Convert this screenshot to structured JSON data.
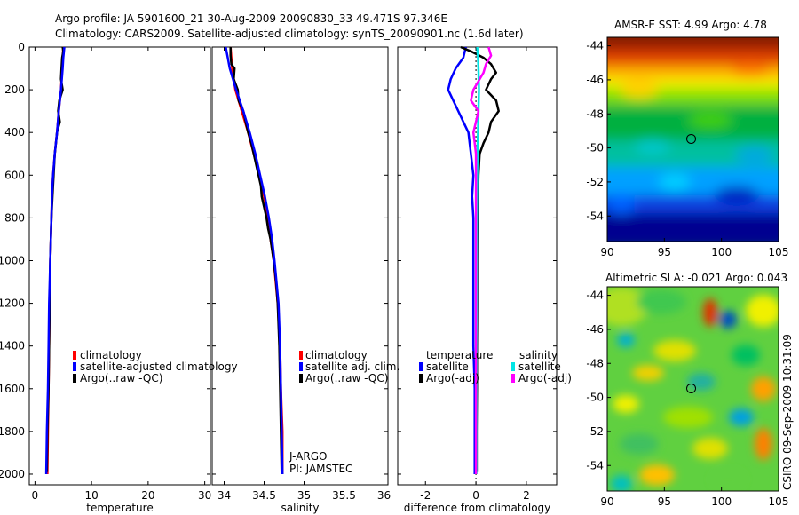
{
  "header": {
    "title_line1": "Argo profile: JA 5901600_21 30-Aug-2009 20090830_33 49.471S 97.346E",
    "title_line2": "Climatology: CARS2009. Satellite-adjusted climatology: synTS_20090901.nc (1.6d later)"
  },
  "stamp": "CSIRO 09-Sep-2009 10:31:09",
  "colors": {
    "climatology": "#ff0000",
    "satellite": "#0000ff",
    "argo": "#000000",
    "cyan": "#00e5e5",
    "magenta": "#ff00ff"
  },
  "chart_data": [
    {
      "type": "line",
      "name": "temperature",
      "xlabel": "temperature",
      "xlim": [
        -1,
        31
      ],
      "ylim": [
        0,
        2050
      ],
      "xticks": [
        "0",
        "10",
        "20",
        "30"
      ],
      "xtick_values": [
        0,
        10,
        20,
        30
      ],
      "yticks": [
        "0",
        "200",
        "400",
        "600",
        "800",
        "1000",
        "1200",
        "1400",
        "1600",
        "1800",
        "2000"
      ],
      "ytick_values": [
        0,
        200,
        400,
        600,
        800,
        1000,
        1200,
        1400,
        1600,
        1800,
        2000
      ],
      "legend": [
        "climatology",
        "satellite-adjusted climatology",
        "Argo(..raw -QC)"
      ],
      "series": [
        {
          "name": "climatology",
          "color": "#ff0000",
          "depth": [
            0,
            50,
            100,
            200,
            300,
            400,
            500,
            600,
            700,
            800,
            1000,
            1200,
            1400,
            1600,
            1800,
            2000
          ],
          "value": [
            5.0,
            4.9,
            4.8,
            4.6,
            4.2,
            3.9,
            3.5,
            3.2,
            3.0,
            2.9,
            2.7,
            2.6,
            2.5,
            2.4,
            2.3,
            2.2
          ]
        },
        {
          "name": "Argo(..raw -QC)",
          "color": "#000000",
          "depth": [
            0,
            20,
            50,
            100,
            150,
            200,
            250,
            300,
            350,
            400,
            450,
            500,
            600,
            700,
            800,
            1000,
            1200,
            1400,
            1600,
            1800,
            1990
          ],
          "value": [
            4.9,
            5.0,
            4.8,
            4.7,
            4.6,
            4.9,
            4.3,
            4.1,
            4.4,
            3.9,
            3.7,
            3.5,
            3.3,
            3.1,
            2.9,
            2.7,
            2.6,
            2.5,
            2.4,
            2.2,
            2.1
          ]
        },
        {
          "name": "satellite-adjusted climatology",
          "color": "#0000ff",
          "depth": [
            0,
            50,
            100,
            200,
            300,
            400,
            500,
            600,
            700,
            800,
            1000,
            1200,
            1400,
            1600,
            1800,
            2000
          ],
          "value": [
            5.2,
            5.0,
            4.9,
            4.6,
            4.2,
            3.9,
            3.5,
            3.2,
            3.0,
            2.9,
            2.7,
            2.5,
            2.4,
            2.3,
            2.1,
            2.0
          ]
        }
      ]
    },
    {
      "type": "line",
      "name": "salinity",
      "xlabel": "salinity",
      "xlim": [
        33.85,
        36.05
      ],
      "ylim": [
        0,
        2050
      ],
      "xticks": [
        "34",
        "34.5",
        "35",
        "35.5",
        "36"
      ],
      "xtick_values": [
        34,
        34.5,
        35,
        35.5,
        36
      ],
      "legend": [
        "climatology",
        "satellite adj. clim.",
        "Argo(..raw -QC)"
      ],
      "annotations": [
        "J-ARGO",
        "PI: JAMSTEC"
      ],
      "series": [
        {
          "name": "climatology",
          "color": "#ff0000",
          "depth": [
            0,
            100,
            200,
            300,
            400,
            500,
            600,
            700,
            800,
            900,
            1000,
            1200,
            1400,
            1600,
            1800,
            2000
          ],
          "value": [
            34.08,
            34.1,
            34.14,
            34.22,
            34.3,
            34.37,
            34.44,
            34.5,
            34.55,
            34.58,
            34.62,
            34.67,
            34.7,
            34.71,
            34.73,
            34.73
          ]
        },
        {
          "name": "Argo(..raw -QC)",
          "color": "#000000",
          "depth": [
            0,
            40,
            80,
            100,
            150,
            200,
            250,
            300,
            350,
            400,
            450,
            500,
            550,
            600,
            650,
            700,
            750,
            800,
            850,
            900,
            950,
            1000,
            1100,
            1200,
            1400,
            1600,
            1800,
            2000
          ],
          "value": [
            34.08,
            34.08,
            34.09,
            34.13,
            34.12,
            34.17,
            34.18,
            34.24,
            34.27,
            34.3,
            34.34,
            34.37,
            34.4,
            34.43,
            34.46,
            34.47,
            34.5,
            34.53,
            34.55,
            34.58,
            34.6,
            34.62,
            34.65,
            34.67,
            34.69,
            34.7,
            34.71,
            34.72
          ]
        },
        {
          "name": "satellite adj. clim.",
          "color": "#0000ff",
          "depth": [
            0,
            100,
            200,
            300,
            400,
            500,
            600,
            700,
            800,
            900,
            1000,
            1200,
            1400,
            1600,
            1800,
            2000
          ],
          "value": [
            34.02,
            34.07,
            34.15,
            34.24,
            34.32,
            34.39,
            34.45,
            34.51,
            34.56,
            34.6,
            34.63,
            34.68,
            34.7,
            34.71,
            34.72,
            34.73
          ]
        }
      ]
    },
    {
      "type": "line",
      "name": "difference",
      "xlabel": "difference from climatology",
      "xlim": [
        -3.1,
        3.2
      ],
      "ylim": [
        0,
        2050
      ],
      "xticks": [
        "-2",
        "0",
        "2"
      ],
      "xtick_values": [
        -2,
        0,
        2
      ],
      "legend_temperature_title": "temperature",
      "legend_salinity_title": "salinity",
      "legend": [
        "satellite",
        "Argo(-adj)",
        "satellite",
        "Argo(-adj)"
      ],
      "series": [
        {
          "name": "temperature satellite",
          "color": "#0000ff",
          "depth": [
            0,
            50,
            100,
            150,
            200,
            250,
            300,
            350,
            400,
            500,
            600,
            700,
            800,
            900,
            1000,
            1200,
            1400,
            1600,
            1800,
            2000
          ],
          "value": [
            -0.4,
            -0.5,
            -0.8,
            -1.0,
            -1.1,
            -0.9,
            -0.7,
            -0.5,
            -0.3,
            -0.2,
            -0.1,
            -0.15,
            -0.1,
            -0.1,
            -0.1,
            -0.1,
            -0.1,
            -0.05,
            -0.05,
            -0.05
          ]
        },
        {
          "name": "temperature Argo(-adj)",
          "color": "#000000",
          "depth": [
            0,
            20,
            50,
            80,
            120,
            150,
            200,
            250,
            300,
            350,
            400,
            450,
            500,
            600,
            700,
            800,
            1000,
            1200,
            1400,
            1600,
            1800,
            1990
          ],
          "value": [
            -0.6,
            -0.2,
            0.3,
            0.6,
            0.8,
            0.6,
            0.4,
            0.8,
            0.9,
            0.6,
            0.5,
            0.3,
            0.15,
            0.1,
            0.08,
            0.06,
            0.05,
            0.05,
            0.04,
            0.04,
            0.03,
            0.03
          ]
        },
        {
          "name": "salinity satellite",
          "color": "#00e5e5",
          "depth": [
            0,
            50,
            100,
            200,
            300,
            400,
            500,
            600,
            800,
            1000,
            1200,
            1400,
            1600,
            1800,
            2000
          ],
          "value": [
            0.05,
            0.08,
            0.1,
            0.12,
            0.1,
            0.08,
            0.06,
            0.05,
            0.04,
            0.03,
            0.03,
            0.02,
            0.02,
            0.02,
            0.02
          ]
        },
        {
          "name": "salinity Argo(-adj)",
          "color": "#ff00ff",
          "depth": [
            0,
            40,
            80,
            120,
            200,
            250,
            300,
            350,
            400,
            450,
            500,
            600,
            800,
            1000,
            1200,
            1400,
            1600,
            1800,
            2000
          ],
          "value": [
            0.5,
            0.6,
            0.4,
            0.3,
            -0.1,
            -0.2,
            0.1,
            0.0,
            -0.1,
            -0.05,
            0.0,
            0.0,
            0.0,
            0.0,
            0.0,
            0.0,
            0.0,
            0.0,
            0.0
          ]
        }
      ]
    },
    {
      "type": "heatmap",
      "name": "sst_map",
      "title": "AMSR-E SST: 4.99  Argo: 4.78",
      "xlim": [
        90,
        105
      ],
      "ylim": [
        -55.5,
        -43.5
      ],
      "xticks": [
        "90",
        "95",
        "100",
        "105"
      ],
      "xtick_values": [
        90,
        95,
        100,
        105
      ],
      "yticks": [
        "-44",
        "-46",
        "-48",
        "-50",
        "-52",
        "-54"
      ],
      "ytick_values": [
        -44,
        -46,
        -48,
        -50,
        -52,
        -54
      ],
      "marker": {
        "lon": 97.346,
        "lat": -49.471
      }
    },
    {
      "type": "heatmap",
      "name": "sla_map",
      "title": "Altimetric SLA: -0.021  Argo: 0.043",
      "xlim": [
        90,
        105
      ],
      "ylim": [
        -55.5,
        -43.5
      ],
      "xticks": [
        "90",
        "95",
        "100",
        "105"
      ],
      "xtick_values": [
        90,
        95,
        100,
        105
      ],
      "yticks": [
        "-44",
        "-46",
        "-48",
        "-50",
        "-52",
        "-54"
      ],
      "ytick_values": [
        -44,
        -46,
        -48,
        -50,
        -52,
        -54
      ],
      "marker": {
        "lon": 97.346,
        "lat": -49.471
      }
    }
  ]
}
